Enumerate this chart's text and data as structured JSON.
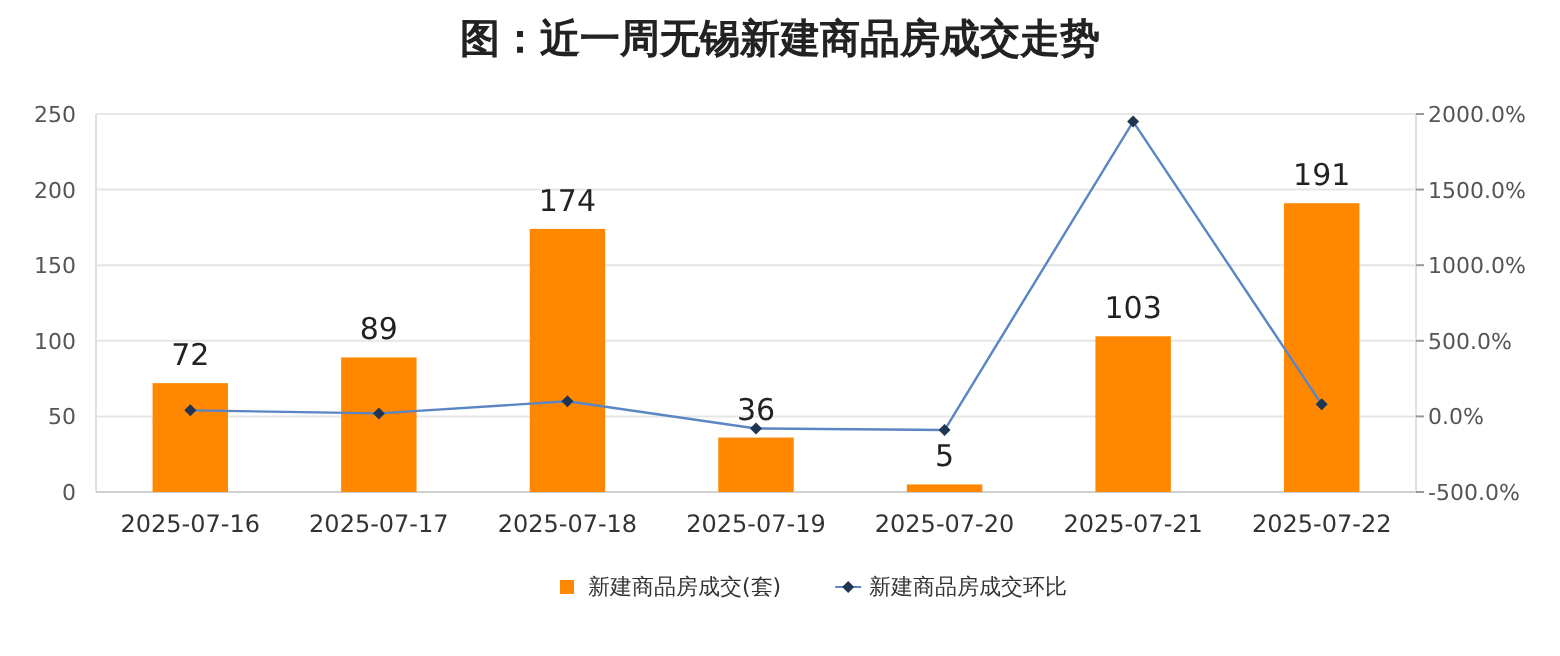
{
  "chart_data": {
    "type": "bar",
    "title": "图：近一周无锡新建商品房成交走势",
    "categories": [
      "2025-07-16",
      "2025-07-17",
      "2025-07-18",
      "2025-07-19",
      "2025-07-20",
      "2025-07-21",
      "2025-07-22"
    ],
    "series": [
      {
        "name": "新建商品房成交(套)",
        "color": "#ff8800",
        "values": [
          72,
          89,
          174,
          36,
          5,
          103,
          191
        ],
        "value_labels": [
          "72",
          "89",
          "174",
          "36",
          "5",
          "103",
          "191"
        ]
      },
      {
        "name": "新建商品房成交环比",
        "type": "line",
        "axis": "y2",
        "color": "#5b86c4",
        "marker": "diamond",
        "values": [
          40,
          20,
          100,
          -80,
          -90,
          1950,
          80
        ]
      }
    ],
    "ylim": [
      0,
      250
    ],
    "yticks": [
      0,
      50,
      100,
      150,
      200,
      250
    ],
    "y2lim": [
      -500,
      2000
    ],
    "y2ticks": [
      {
        "value": -500,
        "label": "-500.0%"
      },
      {
        "value": 0,
        "label": "0.0%"
      },
      {
        "value": 500,
        "label": "500.0%"
      },
      {
        "value": 1000,
        "label": "1000.0%"
      },
      {
        "value": 1500,
        "label": "1500.0%"
      },
      {
        "value": 2000,
        "label": "2000.0%"
      }
    ],
    "grid": "y",
    "legend": "bottom"
  }
}
